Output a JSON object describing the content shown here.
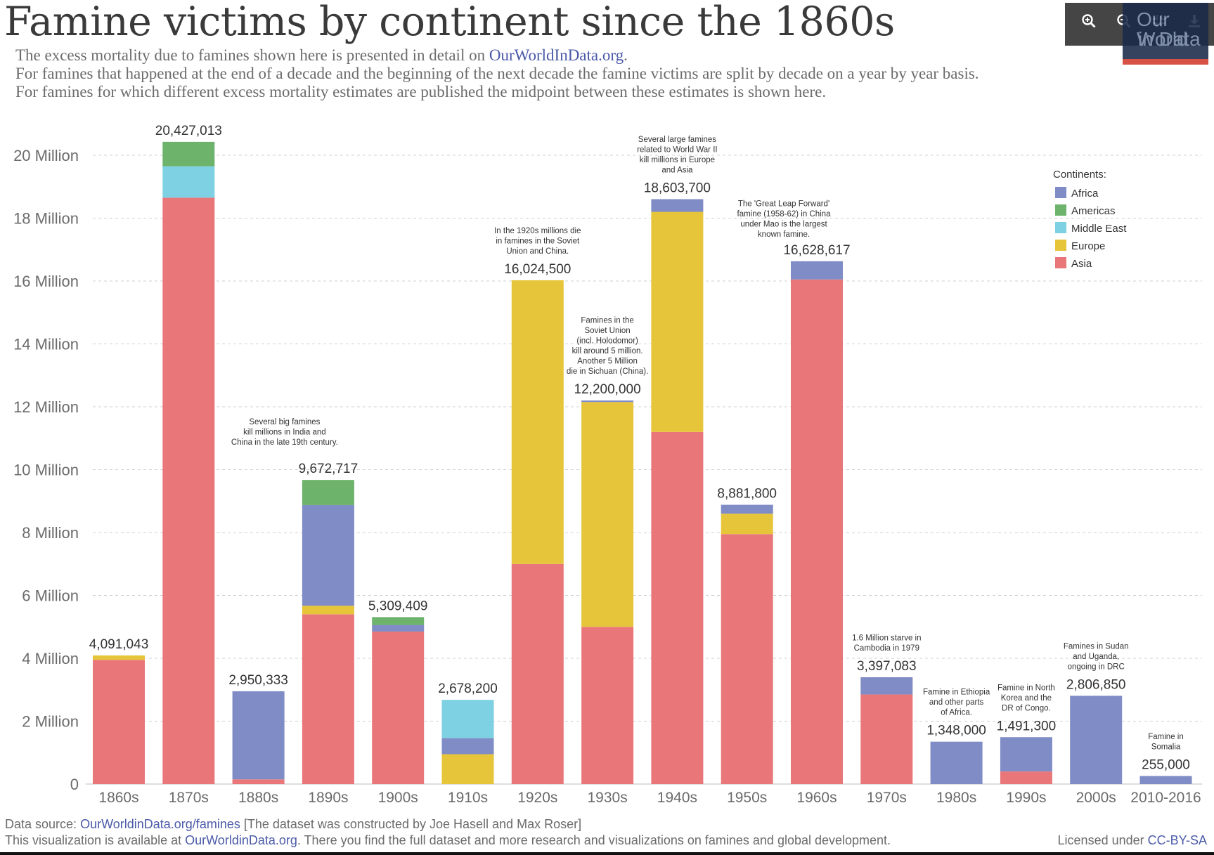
{
  "title": "Famine victims by continent since the 1860s",
  "subtitle": {
    "line1_text": "The excess mortality due to famines shown here is presented in detail on",
    "line1_link": "OurWorldInData.org",
    "line1_end": ".",
    "line2": "For famines that happened at the end of a decade and the beginning of the next decade the famine victims are split by decade on a year by year basis.",
    "line3": "For famines for which different excess mortality estimates are published the midpoint between these estimates is shown here."
  },
  "toolbar": {
    "zoom_in_icon": "zoom-in-icon",
    "zoom_out_icon": "zoom-out-icon",
    "fullscreen_icon": "fullscreen-icon",
    "download_icon": "download-icon"
  },
  "logo": {
    "line1": "Our World",
    "line2": "in Data",
    "colors": {
      "bg": "#1b2a4a",
      "stripe": "#d23a2b"
    }
  },
  "footer": {
    "source_prefix": "Data source:",
    "source_link": "OurWorldinData.org/famines",
    "source_suffix": "[The dataset was constructed by Joe Hasell and Max Roser]",
    "avail_prefix": "This visualization is available at",
    "avail_link": "OurWorldinData.org",
    "avail_suffix": ". There you find the full dataset and more research and visualizations on famines and global development.",
    "license_prefix": "Licensed under",
    "license_link": "CC-BY-SA"
  },
  "chart_data": {
    "type": "bar",
    "stacked": true,
    "categories": [
      "1860s",
      "1870s",
      "1880s",
      "1890s",
      "1900s",
      "1910s",
      "1920s",
      "1930s",
      "1940s",
      "1950s",
      "1960s",
      "1970s",
      "1980s",
      "1990s",
      "2000s",
      "2010-2016"
    ],
    "legend_title": "Continents:",
    "legend_position": "top-right",
    "ylim": [
      0,
      21000000
    ],
    "yticks": [
      0,
      2000000,
      4000000,
      6000000,
      8000000,
      10000000,
      12000000,
      14000000,
      16000000,
      18000000,
      20000000
    ],
    "ytick_labels": [
      "0",
      "2 Million",
      "4 Million",
      "6 Million",
      "8 Million",
      "10 Million",
      "12 Million",
      "14 Million",
      "16 Million",
      "18 Million",
      "20 Million"
    ],
    "grid": true,
    "stack_order": [
      "Asia",
      "Europe",
      "Africa",
      "Middle East",
      "Americas"
    ],
    "legend_order": [
      "Africa",
      "Americas",
      "Middle East",
      "Europe",
      "Asia"
    ],
    "colors": {
      "Africa": "#7f8cc6",
      "Americas": "#6db36b",
      "Middle East": "#7dd1e2",
      "Europe": "#e7c53a",
      "Asia": "#e9777a"
    },
    "series": [
      {
        "name": "Asia",
        "values": [
          3950000,
          18650000,
          150000,
          5400000,
          4850000,
          0,
          7000000,
          5000000,
          11200000,
          7950000,
          16050000,
          2850000,
          0,
          400000,
          0,
          0
        ]
      },
      {
        "name": "Europe",
        "values": [
          141043,
          0,
          0,
          272717,
          0,
          950000,
          9024500,
          7150000,
          7000000,
          650000,
          0,
          0,
          0,
          0,
          0,
          0
        ]
      },
      {
        "name": "Africa",
        "values": [
          0,
          0,
          2800333,
          3200000,
          209409,
          510000,
          0,
          50000,
          403700,
          281800,
          578617,
          547083,
          1348000,
          1091300,
          2806850,
          255000
        ]
      },
      {
        "name": "Middle East",
        "values": [
          0,
          1000000,
          0,
          0,
          0,
          1218200,
          0,
          0,
          0,
          0,
          0,
          0,
          0,
          0,
          0,
          0
        ]
      },
      {
        "name": "Americas",
        "values": [
          0,
          777013,
          0,
          800000,
          250000,
          0,
          0,
          0,
          0,
          0,
          0,
          0,
          0,
          0,
          0,
          0
        ]
      }
    ],
    "totals": [
      4091043,
      20427013,
      2950333,
      9672717,
      5309409,
      2678200,
      16024500,
      12200000,
      18603700,
      8881800,
      16628617,
      3397083,
      1348000,
      1491300,
      2806850,
      255000
    ],
    "total_labels": [
      "4,091,043",
      "20,427,013",
      "2,950,333",
      "9,672,717",
      "5,309,409",
      "2,678,200",
      "16,024,500",
      "12,200,000",
      "18,603,700",
      "8,881,800",
      "16,628,617",
      "3,397,083",
      "1,348,000",
      "1,491,300",
      "2,806,850",
      "255,000"
    ],
    "annotations": [
      {
        "category": "1890s",
        "lines": [
          "Several big famines",
          "kill millions in India and",
          "China in the late 19th century."
        ]
      },
      {
        "category": "1920s",
        "lines": [
          "In the 1920s millions die",
          "in famines in the Soviet",
          "Union and China."
        ]
      },
      {
        "category": "1930s",
        "lines": [
          "Famines in the",
          "Soviet Union",
          "(incl. Holodomor)",
          "kill around 5 million.",
          "Another 5 Million",
          "die in Sichuan (China)."
        ]
      },
      {
        "category": "1940s",
        "lines": [
          "Several large famines",
          "related to World War II",
          "kill millions in Europe",
          "and Asia"
        ]
      },
      {
        "category": "1960s",
        "lines": [
          "The 'Great Leap Forward'",
          "famine (1958-62) in China",
          "under Mao is the largest",
          "known famine."
        ]
      },
      {
        "category": "1970s",
        "lines": [
          "1.6 Million starve in",
          "Cambodia in 1979"
        ]
      },
      {
        "category": "1980s",
        "lines": [
          "Famine in Ethiopia",
          "and other parts",
          "of Africa."
        ]
      },
      {
        "category": "1990s",
        "lines": [
          "Famine in North",
          "Korea and the",
          "DR of Congo."
        ]
      },
      {
        "category": "2000s",
        "lines": [
          "Famines in Sudan",
          "and Uganda,",
          "ongoing in DRC"
        ]
      },
      {
        "category": "2010-2016",
        "lines": [
          "Famine in",
          "Somalia"
        ]
      }
    ]
  }
}
